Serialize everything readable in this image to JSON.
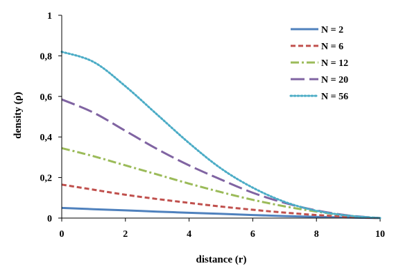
{
  "chart_data": {
    "type": "line",
    "title": "",
    "xlabel": "distance (r)",
    "ylabel": "density (ρ)",
    "xlim": [
      0,
      10
    ],
    "ylim": [
      0,
      1
    ],
    "x_ticks": [
      "0",
      "2",
      "4",
      "6",
      "8",
      "10"
    ],
    "y_ticks": [
      "0",
      "0,2",
      "0,4",
      "0,6",
      "0,8",
      "1"
    ],
    "grid": false,
    "legend_position": "top-right",
    "x": [
      0,
      1,
      2,
      3,
      4,
      5,
      6,
      7,
      8,
      9,
      10
    ],
    "series": [
      {
        "name": "N = 2",
        "color": "#4F81BD",
        "style": "solid",
        "values": [
          0.05,
          0.044,
          0.038,
          0.032,
          0.026,
          0.021,
          0.015,
          0.01,
          0.006,
          0.003,
          0.0
        ]
      },
      {
        "name": "N = 6",
        "color": "#C0504D",
        "style": "dash",
        "values": [
          0.165,
          0.14,
          0.115,
          0.094,
          0.075,
          0.057,
          0.041,
          0.027,
          0.015,
          0.006,
          0.0
        ]
      },
      {
        "name": "N = 12",
        "color": "#9BBB59",
        "style": "dashdot",
        "values": [
          0.345,
          0.305,
          0.26,
          0.215,
          0.17,
          0.128,
          0.09,
          0.058,
          0.032,
          0.012,
          0.0
        ]
      },
      {
        "name": "N = 20",
        "color": "#8064A2",
        "style": "longdash",
        "values": [
          0.585,
          0.52,
          0.43,
          0.34,
          0.26,
          0.19,
          0.125,
          0.075,
          0.038,
          0.013,
          0.0
        ]
      },
      {
        "name": "N = 56",
        "color": "#4BACC6",
        "style": "dot",
        "values": [
          0.82,
          0.77,
          0.65,
          0.51,
          0.37,
          0.245,
          0.15,
          0.08,
          0.036,
          0.012,
          0.0
        ]
      }
    ]
  }
}
